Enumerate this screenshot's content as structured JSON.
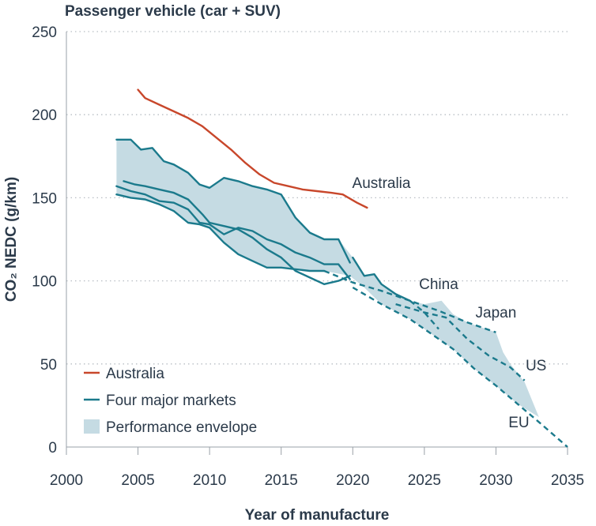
{
  "chart_data": {
    "type": "line",
    "title": "Passenger vehicle (car + SUV)",
    "xlabel": "Year of manufacture",
    "ylabel": "CO₂ NEDC (g/km)",
    "xlim": [
      2000,
      2035
    ],
    "ylim": [
      0,
      250
    ],
    "xticks": [
      2000,
      2005,
      2010,
      2015,
      2020,
      2025,
      2030,
      2035
    ],
    "yticks": [
      0,
      50,
      100,
      150,
      200,
      250
    ],
    "grid": "horizontal-dotted",
    "colors": {
      "australia": "#c8472b",
      "markets": "#1b7a8c",
      "envelope": "#c5dbe3",
      "text": "#2b3a4a"
    },
    "series": [
      {
        "name": "Australia",
        "style": "solid",
        "points": [
          [
            2005.0,
            215
          ],
          [
            2005.5,
            210
          ],
          [
            2006.5,
            206
          ],
          [
            2007.5,
            202
          ],
          [
            2008.5,
            198
          ],
          [
            2009.5,
            193
          ],
          [
            2010.5,
            186
          ],
          [
            2011.5,
            179
          ],
          [
            2012.5,
            171
          ],
          [
            2013.5,
            164
          ],
          [
            2014.5,
            159
          ],
          [
            2015.5,
            157
          ],
          [
            2016.5,
            155
          ],
          [
            2017.5,
            154
          ],
          [
            2018.5,
            153
          ],
          [
            2019.3,
            152
          ],
          [
            2020.3,
            147
          ],
          [
            2021.0,
            144
          ]
        ]
      },
      {
        "name": "Four major markets - upper",
        "style": "solid",
        "points": [
          [
            2003.5,
            185
          ],
          [
            2004.5,
            185
          ],
          [
            2005.2,
            179
          ],
          [
            2006.0,
            180
          ],
          [
            2006.8,
            172
          ],
          [
            2007.5,
            170
          ],
          [
            2008.5,
            165
          ],
          [
            2009.3,
            158
          ],
          [
            2010.0,
            156
          ],
          [
            2011.0,
            162
          ],
          [
            2012.0,
            160
          ],
          [
            2013.0,
            157
          ],
          [
            2014.0,
            155
          ],
          [
            2015.0,
            152
          ],
          [
            2016.0,
            138
          ],
          [
            2017.0,
            129
          ],
          [
            2018.0,
            125
          ],
          [
            2019.0,
            125
          ],
          [
            2019.8,
            111
          ]
        ]
      },
      {
        "name": "Four major markets - upper-middle",
        "style": "solid",
        "points": [
          [
            2003.5,
            157
          ],
          [
            2004.5,
            154
          ],
          [
            2005.5,
            152
          ],
          [
            2006.5,
            148
          ],
          [
            2007.5,
            147
          ],
          [
            2008.5,
            143
          ],
          [
            2009.3,
            135
          ],
          [
            2010.0,
            134
          ],
          [
            2011.0,
            128
          ],
          [
            2012.0,
            132
          ],
          [
            2013.0,
            130
          ],
          [
            2014.0,
            125
          ],
          [
            2015.0,
            122
          ],
          [
            2016.0,
            117
          ],
          [
            2017.0,
            114
          ],
          [
            2018.0,
            110
          ],
          [
            2019.0,
            110
          ],
          [
            2019.8,
            101
          ]
        ]
      },
      {
        "name": "Four major markets - lower-middle",
        "style": "solid",
        "points": [
          [
            2004.0,
            160
          ],
          [
            2004.8,
            158
          ],
          [
            2005.5,
            157
          ],
          [
            2006.5,
            155
          ],
          [
            2007.5,
            153
          ],
          [
            2008.5,
            149
          ],
          [
            2009.5,
            140
          ],
          [
            2010.0,
            135
          ],
          [
            2011.0,
            133
          ],
          [
            2012.0,
            131
          ],
          [
            2013.0,
            126
          ],
          [
            2014.0,
            119
          ],
          [
            2015.0,
            114
          ],
          [
            2016.0,
            106
          ],
          [
            2017.0,
            102
          ],
          [
            2018.0,
            98
          ],
          [
            2019.0,
            100
          ],
          [
            2019.8,
            103
          ]
        ]
      },
      {
        "name": "Four major markets - lower",
        "style": "solid",
        "points": [
          [
            2003.5,
            152
          ],
          [
            2004.5,
            150
          ],
          [
            2005.5,
            149
          ],
          [
            2006.5,
            146
          ],
          [
            2007.5,
            142
          ],
          [
            2008.5,
            135
          ],
          [
            2009.3,
            134
          ],
          [
            2010.0,
            132
          ],
          [
            2011.0,
            123
          ],
          [
            2012.0,
            116
          ],
          [
            2013.0,
            112
          ],
          [
            2014.0,
            108
          ],
          [
            2015.0,
            108
          ],
          [
            2016.0,
            107
          ],
          [
            2017.0,
            106
          ],
          [
            2018.0,
            106
          ]
        ]
      },
      {
        "name": "China",
        "style": "solid",
        "points": [
          [
            2020.0,
            114
          ],
          [
            2020.8,
            103
          ],
          [
            2021.5,
            104
          ],
          [
            2022.0,
            98
          ],
          [
            2023.0,
            92
          ],
          [
            2024.0,
            88
          ]
        ]
      },
      {
        "name": "China target",
        "style": "dashed",
        "points": [
          [
            2024.0,
            88
          ],
          [
            2025.0,
            81
          ],
          [
            2026.0,
            71
          ]
        ]
      },
      {
        "name": "Japan",
        "style": "dashed",
        "points": [
          [
            2018.0,
            106
          ],
          [
            2020.0,
            99
          ],
          [
            2022.0,
            94
          ],
          [
            2024.0,
            88
          ],
          [
            2026.0,
            82
          ],
          [
            2028.0,
            75
          ],
          [
            2030.0,
            69
          ]
        ]
      },
      {
        "name": "US",
        "style": "dashed",
        "points": [
          [
            2023.0,
            86
          ],
          [
            2025.0,
            81
          ],
          [
            2026.5,
            78
          ],
          [
            2028.0,
            65
          ],
          [
            2029.5,
            55
          ],
          [
            2031.0,
            48
          ],
          [
            2032.0,
            40
          ]
        ]
      },
      {
        "name": "EU",
        "style": "dashed",
        "points": [
          [
            2020.0,
            96
          ],
          [
            2022.0,
            86
          ],
          [
            2024.0,
            77
          ],
          [
            2025.0,
            71
          ],
          [
            2027.0,
            59
          ],
          [
            2028.5,
            47
          ],
          [
            2030.0,
            37
          ],
          [
            2031.5,
            26
          ],
          [
            2033.0,
            15
          ],
          [
            2035.0,
            0
          ]
        ]
      }
    ],
    "envelope": {
      "name": "Performance envelope",
      "upper": [
        [
          2003.5,
          185
        ],
        [
          2004.5,
          185
        ],
        [
          2005.2,
          179
        ],
        [
          2006.0,
          180
        ],
        [
          2006.8,
          172
        ],
        [
          2007.5,
          170
        ],
        [
          2008.5,
          165
        ],
        [
          2009.3,
          158
        ],
        [
          2010.0,
          156
        ],
        [
          2011.0,
          162
        ],
        [
          2012.0,
          160
        ],
        [
          2013.0,
          157
        ],
        [
          2014.0,
          155
        ],
        [
          2015.0,
          152
        ],
        [
          2016.0,
          138
        ],
        [
          2017.0,
          129
        ],
        [
          2018.0,
          125
        ],
        [
          2019.0,
          125
        ],
        [
          2020.0,
          114
        ],
        [
          2020.8,
          103
        ],
        [
          2021.5,
          104
        ],
        [
          2022.0,
          98
        ],
        [
          2023.0,
          92
        ],
        [
          2024.0,
          88
        ],
        [
          2025.0,
          86
        ],
        [
          2026.2,
          88
        ],
        [
          2027.0,
          80
        ],
        [
          2028.0,
          75
        ],
        [
          2030.0,
          69
        ],
        [
          2030.5,
          57
        ],
        [
          2031.0,
          50
        ],
        [
          2032.0,
          39
        ],
        [
          2033.0,
          18
        ]
      ],
      "lower": [
        [
          2033.0,
          18
        ],
        [
          2031.5,
          26
        ],
        [
          2030.0,
          37
        ],
        [
          2028.5,
          47
        ],
        [
          2027.0,
          59
        ],
        [
          2025.0,
          71
        ],
        [
          2024.0,
          77
        ],
        [
          2022.0,
          86
        ],
        [
          2020.8,
          96
        ],
        [
          2019.8,
          103
        ],
        [
          2018.0,
          106
        ],
        [
          2017.0,
          106
        ],
        [
          2016.0,
          107
        ],
        [
          2015.0,
          108
        ],
        [
          2014.0,
          108
        ],
        [
          2013.0,
          112
        ],
        [
          2012.0,
          116
        ],
        [
          2011.0,
          123
        ],
        [
          2010.0,
          132
        ],
        [
          2009.3,
          134
        ],
        [
          2008.5,
          135
        ],
        [
          2007.5,
          142
        ],
        [
          2006.5,
          146
        ],
        [
          2005.5,
          149
        ],
        [
          2004.5,
          150
        ],
        [
          2003.5,
          152
        ]
      ]
    },
    "series_labels": [
      {
        "text": "Australia",
        "x": 2022,
        "y": 156
      },
      {
        "text": "China",
        "x": 2026,
        "y": 95
      },
      {
        "text": "Japan",
        "x": 2030,
        "y": 78
      },
      {
        "text": "US",
        "x": 2032.8,
        "y": 46
      },
      {
        "text": "EU",
        "x": 2031.6,
        "y": 12
      }
    ],
    "legend": {
      "placement": "bottom-left",
      "items": [
        {
          "label": "Australia",
          "kind": "line",
          "color": "#c8472b"
        },
        {
          "label": "Four major markets",
          "kind": "line",
          "color": "#1b7a8c"
        },
        {
          "label": "Performance envelope",
          "kind": "area",
          "color": "#c5dbe3"
        }
      ]
    }
  }
}
